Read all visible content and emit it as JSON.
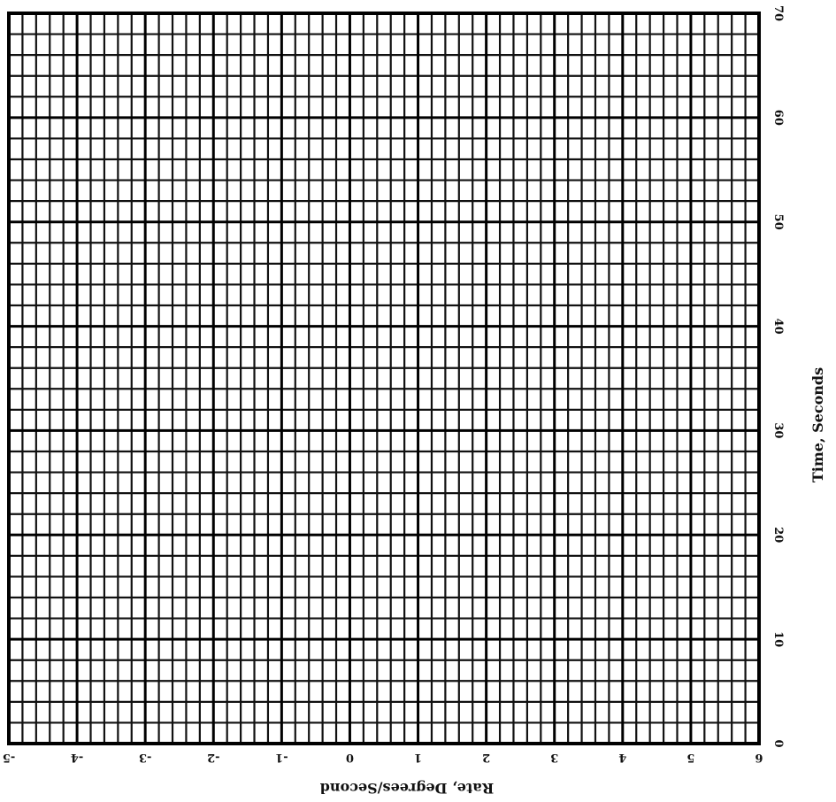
{
  "chart_data": {
    "type": "scatter",
    "xlabel": "Rate, Degrees/Second",
    "ylabel": "Time, Seconds",
    "xlim": [
      -5,
      6
    ],
    "xticks": [
      -5,
      -4,
      -3,
      -2,
      -1,
      0,
      1,
      2,
      3,
      4,
      5,
      6
    ],
    "ylim": [
      0,
      70
    ],
    "yticks": [
      0,
      10,
      20,
      30,
      40,
      50,
      60,
      70
    ],
    "grid": true
  }
}
